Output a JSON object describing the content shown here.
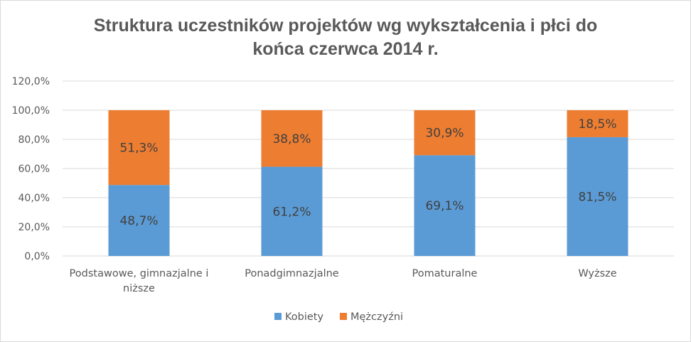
{
  "chart_data": {
    "type": "bar",
    "stacked": true,
    "title_lines": [
      "Struktura uczestników projektów wg wykształcenia i płci do",
      "końca czerwca 2014 r."
    ],
    "categories": [
      [
        "Podstawowe, gimnazjalne i",
        "niższe"
      ],
      [
        "Ponadgimnazjalne"
      ],
      [
        "Pomaturalne"
      ],
      [
        "Wyższe"
      ]
    ],
    "series": [
      {
        "name": "Kobiety",
        "color": "#5b9bd5",
        "values": [
          48.7,
          61.2,
          69.1,
          81.5
        ],
        "labels": [
          "48,7%",
          "61,2%",
          "69,1%",
          "81,5%"
        ]
      },
      {
        "name": "Mężczyźni",
        "color": "#ed7d31",
        "values": [
          51.3,
          38.8,
          30.9,
          18.5
        ],
        "labels": [
          "51,3%",
          "38,8%",
          "30,9%",
          "18,5%"
        ]
      }
    ],
    "ylim": [
      0,
      120
    ],
    "yticks": [
      0,
      20,
      40,
      60,
      80,
      100,
      120
    ],
    "ytick_labels": [
      "0,0%",
      "20,0%",
      "40,0%",
      "60,0%",
      "80,0%",
      "100,0%",
      "120,0%"
    ],
    "grid": true,
    "legend_position": "bottom"
  }
}
